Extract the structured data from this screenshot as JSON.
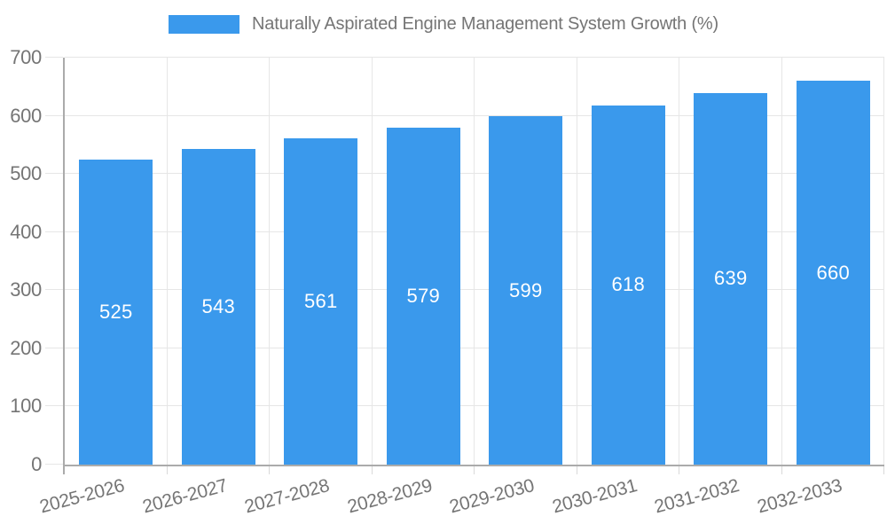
{
  "legend": {
    "label": "Naturally Aspirated Engine Management System Growth (%)"
  },
  "colors": {
    "bar_fill": "#3a99ec",
    "axis_text": "#757575",
    "legend_text": "#757575",
    "grid_line": "#e6e6e6",
    "axis_line": "#ababab",
    "tick_mark": "#d9d9d9",
    "value_label_text": "#ffffff",
    "background": "#ffffff"
  },
  "chart_data": {
    "type": "bar",
    "title": "Naturally Aspirated Engine Management System Growth (%)",
    "categories": [
      "2025-2026",
      "2026-2027",
      "2027-2028",
      "2028-2029",
      "2029-2030",
      "2030-2031",
      "2031-2032",
      "2032-2033"
    ],
    "values": [
      525,
      543,
      561,
      579,
      599,
      618,
      639,
      660
    ],
    "xlabel": "",
    "ylabel": "",
    "ylim": [
      0,
      700
    ],
    "ytick_step": 100,
    "yticks": [
      0,
      100,
      200,
      300,
      400,
      500,
      600,
      700
    ],
    "grid": true,
    "bar_labels": "inside-center-white",
    "legend_position": "top",
    "x_label_rotation_deg": -15
  }
}
